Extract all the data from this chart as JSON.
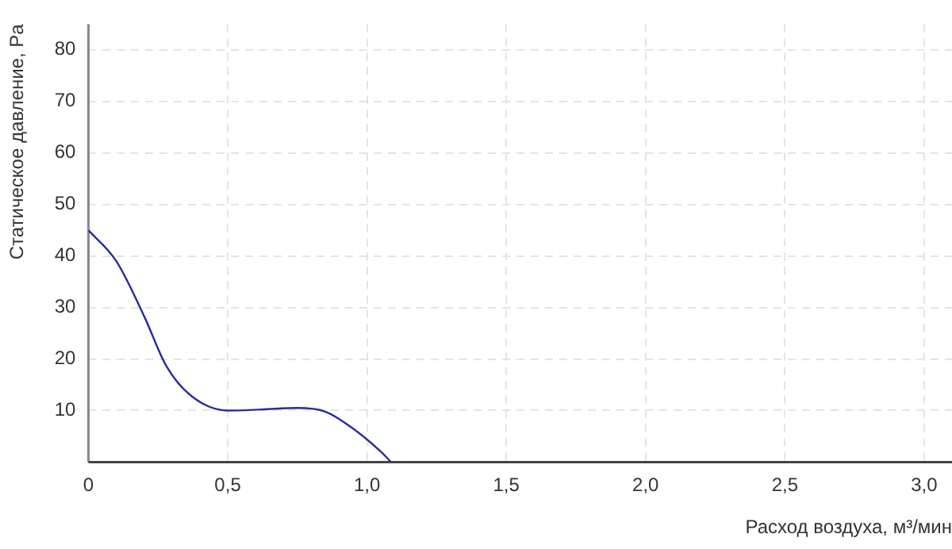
{
  "chart_data": {
    "type": "line",
    "xlabel": "Расход воздуха, м³/мин",
    "ylabel": "Статическое давление, Pa",
    "xlim": [
      0,
      3.1
    ],
    "xticks": [
      {
        "value": 0,
        "label": "0"
      },
      {
        "value": 0.5,
        "label": "0,5"
      },
      {
        "value": 1,
        "label": "1,0"
      },
      {
        "value": 1.5,
        "label": "1,5"
      },
      {
        "value": 2,
        "label": "2,0"
      },
      {
        "value": 2.5,
        "label": "2,5"
      },
      {
        "value": 3,
        "label": "3,0"
      }
    ],
    "ylim": [
      0,
      85
    ],
    "yticks": [
      10,
      20,
      30,
      40,
      50,
      60,
      70,
      80
    ],
    "grid": true,
    "legend": false,
    "series": [
      {
        "color": "#2a2aa0",
        "x": [
          0,
          0.1,
          0.2,
          0.28,
          0.37,
          0.5,
          0.62,
          0.75,
          0.85,
          0.95,
          1.05,
          1.086
        ],
        "values": [
          45,
          39,
          28.3,
          18.6,
          12.8,
          10,
          10.2,
          10.5,
          9.8,
          6.5,
          2,
          0
        ]
      }
    ]
  }
}
